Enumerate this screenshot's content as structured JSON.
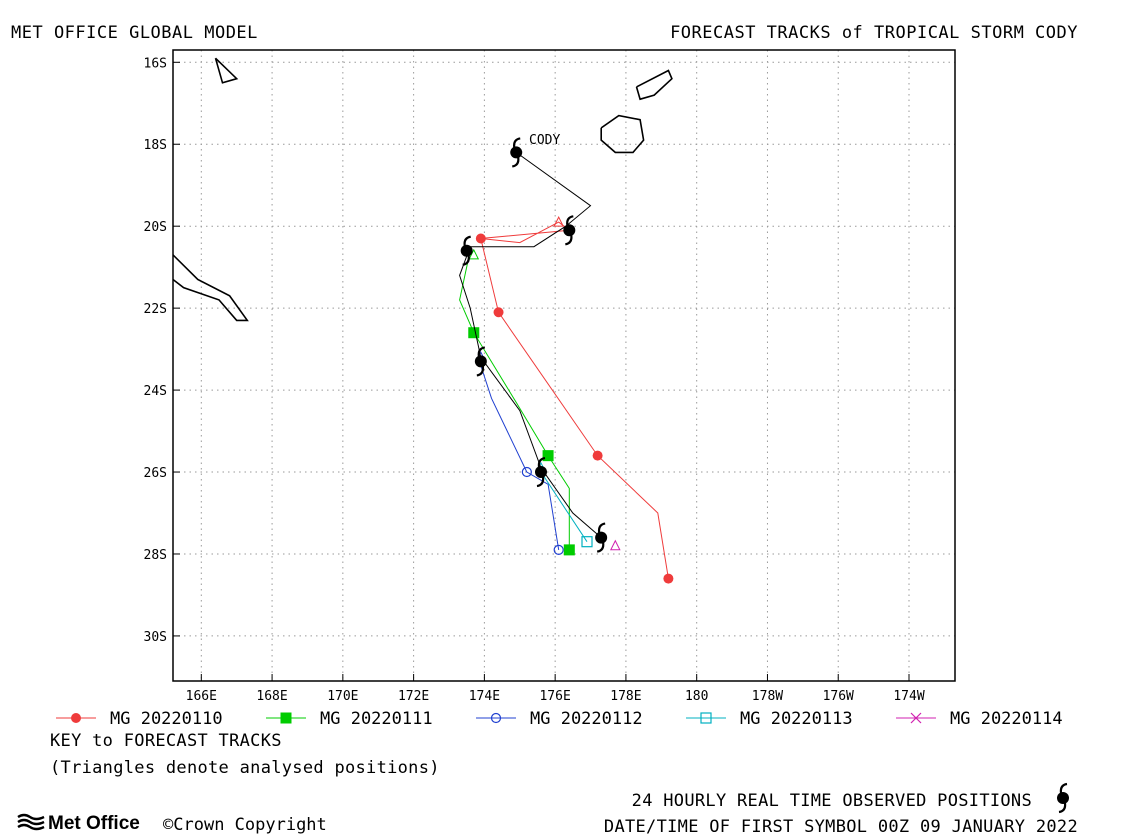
{
  "header": {
    "left_title": "MET OFFICE GLOBAL MODEL",
    "right_title": "FORECAST TRACKS of TROPICAL STORM CODY"
  },
  "storm_label": "CODY",
  "colors": {
    "MG 20220110": "#ef3b3b",
    "MG 20220111": "#00cc00",
    "MG 20220112": "#2040d0",
    "MG 20220113": "#00b0c0",
    "MG 20220114": "#d020b0",
    "observed": "#000000"
  },
  "chart_data": {
    "type": "map",
    "x_axis": {
      "range_lon_east": [
        165.2,
        187.3
      ],
      "ticks": [
        {
          "lon": 166,
          "label": "166E"
        },
        {
          "lon": 168,
          "label": "168E"
        },
        {
          "lon": 170,
          "label": "170E"
        },
        {
          "lon": 172,
          "label": "172E"
        },
        {
          "lon": 174,
          "label": "174E"
        },
        {
          "lon": 176,
          "label": "176E"
        },
        {
          "lon": 178,
          "label": "178E"
        },
        {
          "lon": 180,
          "label": "180"
        },
        {
          "lon": 182,
          "label": "178W"
        },
        {
          "lon": 184,
          "label": "176W"
        },
        {
          "lon": 186,
          "label": "174W"
        }
      ]
    },
    "y_axis": {
      "range_lat": [
        -15.7,
        -31.1
      ],
      "ticks": [
        {
          "lat": -16,
          "label": "16S"
        },
        {
          "lat": -18,
          "label": "18S"
        },
        {
          "lat": -20,
          "label": "20S"
        },
        {
          "lat": -22,
          "label": "22S"
        },
        {
          "lat": -24,
          "label": "24S"
        },
        {
          "lat": -26,
          "label": "26S"
        },
        {
          "lat": -28,
          "label": "28S"
        },
        {
          "lat": -30,
          "label": "30S"
        }
      ]
    },
    "grid": true,
    "observed_track": {
      "name": "24 HOURLY REAL TIME OBSERVED POSITIONS",
      "points": [
        [
          174.9,
          -18.2
        ],
        [
          177.0,
          -19.5
        ],
        [
          176.3,
          -20.0
        ],
        [
          175.4,
          -20.5
        ],
        [
          173.6,
          -20.5
        ],
        [
          173.3,
          -21.2
        ],
        [
          173.6,
          -22.0
        ],
        [
          173.9,
          -23.2
        ],
        [
          175.0,
          -24.5
        ],
        [
          175.6,
          -25.9
        ],
        [
          176.5,
          -27.0
        ],
        [
          177.3,
          -27.6
        ]
      ],
      "symbols": [
        [
          174.9,
          -18.2
        ],
        [
          176.4,
          -20.1
        ],
        [
          173.5,
          -20.6
        ],
        [
          173.9,
          -23.3
        ],
        [
          175.6,
          -26.0
        ],
        [
          177.3,
          -27.6
        ]
      ]
    },
    "series": [
      {
        "name": "MG 20220110",
        "marker": "filled-circle",
        "points": [
          [
            173.9,
            -20.3
          ],
          [
            175.0,
            -20.4
          ],
          [
            176.1,
            -19.9
          ],
          [
            176.4,
            -20.1
          ],
          [
            173.9,
            -20.3
          ],
          [
            174.4,
            -22.1
          ],
          [
            177.2,
            -25.6
          ],
          [
            178.9,
            -27.0
          ],
          [
            179.2,
            -28.6
          ]
        ],
        "markers": [
          [
            173.9,
            -20.3
          ],
          [
            174.4,
            -22.1
          ],
          [
            177.2,
            -25.6
          ],
          [
            179.2,
            -28.6
          ]
        ],
        "triangles": [
          [
            176.1,
            -19.9
          ]
        ]
      },
      {
        "name": "MG 20220111",
        "marker": "filled-square",
        "points": [
          [
            173.6,
            -20.6
          ],
          [
            173.3,
            -21.8
          ],
          [
            173.7,
            -22.6
          ],
          [
            174.9,
            -24.3
          ],
          [
            175.8,
            -25.6
          ],
          [
            176.4,
            -26.4
          ],
          [
            176.4,
            -27.9
          ]
        ],
        "markers": [
          [
            173.7,
            -22.6
          ],
          [
            175.8,
            -25.6
          ],
          [
            176.4,
            -27.9
          ]
        ],
        "triangles": [
          [
            173.7,
            -20.7
          ]
        ]
      },
      {
        "name": "MG 20220112",
        "marker": "open-circle",
        "points": [
          [
            173.9,
            -23.4
          ],
          [
            174.2,
            -24.2
          ],
          [
            175.2,
            -26.0
          ],
          [
            175.8,
            -26.3
          ],
          [
            176.1,
            -27.9
          ]
        ],
        "markers": [
          [
            175.2,
            -26.0
          ],
          [
            176.1,
            -27.9
          ]
        ],
        "triangles": [
          [
            173.9,
            -23.2
          ]
        ]
      },
      {
        "name": "MG 20220113",
        "marker": "open-square",
        "points": [
          [
            175.6,
            -26.0
          ],
          [
            176.9,
            -27.7
          ]
        ],
        "markers": [
          [
            176.9,
            -27.7
          ]
        ],
        "triangles": [
          [
            175.6,
            -25.9
          ]
        ]
      },
      {
        "name": "MG 20220114",
        "marker": "x",
        "points": [],
        "markers": [],
        "triangles": [
          [
            177.7,
            -27.8
          ]
        ]
      }
    ],
    "coastlines": [
      [
        [
          166.4,
          -15.9
        ],
        [
          167.0,
          -16.4
        ],
        [
          166.6,
          -16.5
        ],
        [
          166.4,
          -15.9
        ]
      ],
      [
        [
          178.3,
          -16.6
        ],
        [
          179.2,
          -16.2
        ],
        [
          179.3,
          -16.4
        ],
        [
          178.8,
          -16.8
        ],
        [
          178.4,
          -16.9
        ],
        [
          178.3,
          -16.6
        ]
      ],
      [
        [
          177.3,
          -17.6
        ],
        [
          177.8,
          -17.3
        ],
        [
          178.4,
          -17.4
        ],
        [
          178.5,
          -17.9
        ],
        [
          178.2,
          -18.2
        ],
        [
          177.7,
          -18.2
        ],
        [
          177.3,
          -17.9
        ],
        [
          177.3,
          -17.6
        ]
      ],
      [
        [
          165.2,
          -20.7
        ],
        [
          165.9,
          -21.3
        ],
        [
          166.8,
          -21.7
        ],
        [
          167.3,
          -22.3
        ],
        [
          167.0,
          -22.3
        ],
        [
          166.5,
          -21.8
        ],
        [
          165.5,
          -21.5
        ],
        [
          165.2,
          -21.3
        ]
      ]
    ]
  },
  "legend": {
    "items": [
      "MG 20220110",
      "MG 20220111",
      "MG 20220112",
      "MG 20220113",
      "MG 20220114"
    ],
    "key_title": "KEY to FORECAST TRACKS",
    "key_note": "(Triangles denote analysed positions)"
  },
  "footer": {
    "observed_label": "24 HOURLY REAL TIME OBSERVED POSITIONS",
    "datetime_label": "DATE/TIME OF FIRST SYMBOL 00Z 09 JANUARY 2022",
    "logo_text": "Met Office",
    "copyright": "Crown Copyright"
  }
}
